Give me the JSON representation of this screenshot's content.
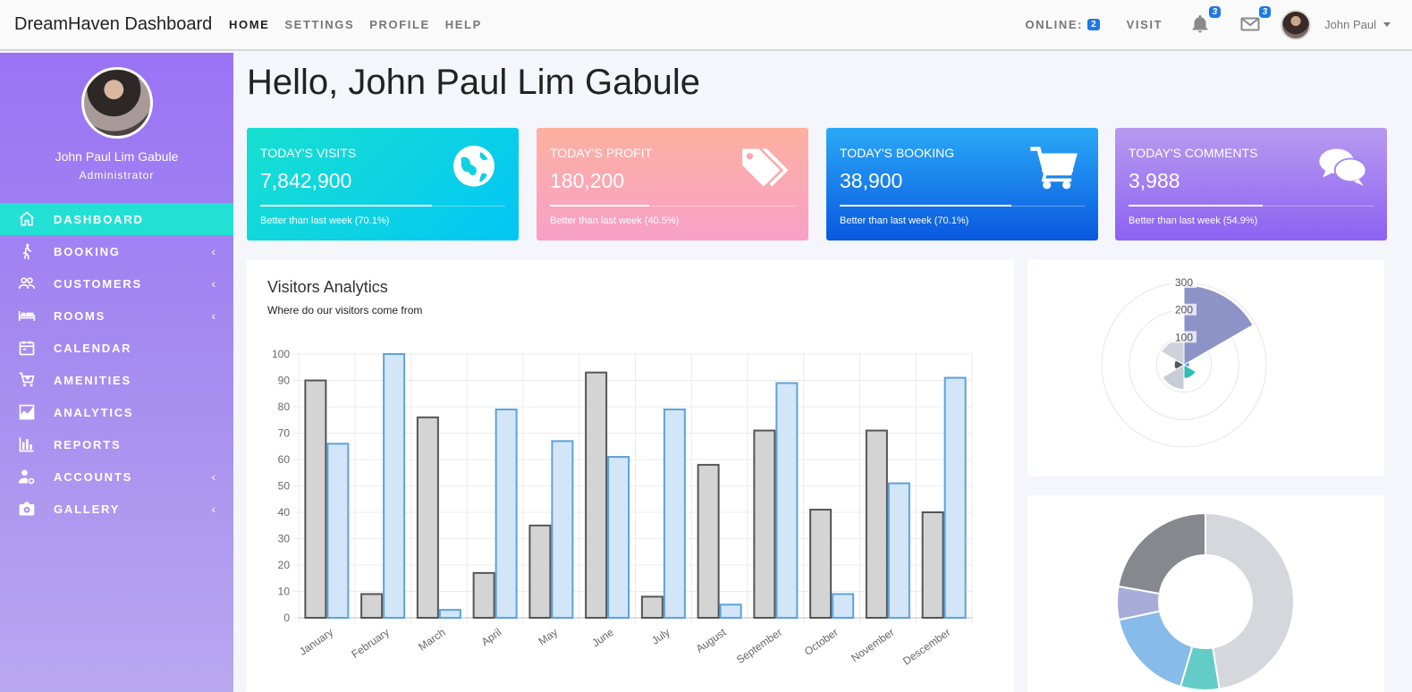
{
  "app": {
    "brand": "DreamHaven Dashboard"
  },
  "topnav": {
    "items": [
      "HOME",
      "SETTINGS",
      "PROFILE",
      "HELP"
    ]
  },
  "topright": {
    "online_label": "ONLINE:",
    "online_count": "2",
    "visit_label": "VISIT",
    "notifications_count": "3",
    "messages_count": "3",
    "user_name": "John Paul"
  },
  "sidebar": {
    "user_name": "John Paul Lim Gabule",
    "role": "Administrator",
    "items": [
      {
        "label": "DASHBOARD",
        "icon": "home-icon",
        "active": true
      },
      {
        "label": "BOOKING",
        "icon": "walk-icon",
        "chevron": "‹"
      },
      {
        "label": "CUSTOMERS",
        "icon": "people-icon",
        "chevron": "‹"
      },
      {
        "label": "ROOMS",
        "icon": "bed-icon",
        "chevron": "‹"
      },
      {
        "label": "CALENDAR",
        "icon": "calendar-icon"
      },
      {
        "label": "AMENITIES",
        "icon": "cart-plus-icon"
      },
      {
        "label": "ANALYTICS",
        "icon": "area-chart-icon"
      },
      {
        "label": "REPORTS",
        "icon": "bar-chart-icon"
      },
      {
        "label": "ACCOUNTS",
        "icon": "user-gear-icon",
        "chevron": "‹"
      },
      {
        "label": "GALLERY",
        "icon": "camera-icon",
        "chevron": "‹"
      }
    ]
  },
  "main": {
    "greeting": "Hello, John Paul Lim Gabule",
    "cards": [
      {
        "title": "TODAY'S VISITS",
        "value": "7,842,900",
        "footer": "Better than last week (70.1%)",
        "progress": 0.701,
        "icon": "globe-icon"
      },
      {
        "title": "TODAY'S PROFIT",
        "value": "180,200",
        "footer": "Better than last week (40.5%)",
        "progress": 0.405,
        "icon": "tags-icon"
      },
      {
        "title": "TODAY'S BOOKING",
        "value": "38,900",
        "footer": "Better than last week (70.1%)",
        "progress": 0.701,
        "icon": "cart-icon"
      },
      {
        "title": "TODAY'S COMMENTS",
        "value": "3,988",
        "footer": "Better than last week (54.9%)",
        "progress": 0.549,
        "icon": "comments-icon"
      }
    ],
    "analytics": {
      "title": "Visitors Analytics",
      "subtitle": "Where do our visitors come from"
    }
  },
  "colors": {
    "series_gray": "#d4d4d4",
    "series_gray_stroke": "#555555",
    "series_blue": "#d2e6f8",
    "series_blue_stroke": "#5da2dc",
    "accent": "#22e0d4",
    "badge": "#1e78e6"
  },
  "chart_data": [
    {
      "type": "bar",
      "categories": [
        "January",
        "February",
        "March",
        "April",
        "May",
        "June",
        "July",
        "August",
        "September",
        "October",
        "November",
        "Descember"
      ],
      "series": [
        {
          "values": [
            90,
            9,
            76,
            17,
            35,
            93,
            8,
            58,
            71,
            41,
            71,
            40
          ]
        },
        {
          "values": [
            66,
            100,
            3,
            79,
            67,
            61,
            79,
            5,
            89,
            9,
            51,
            91
          ]
        }
      ],
      "ylim": [
        0,
        100
      ],
      "yticks": [
        0,
        10,
        20,
        30,
        40,
        50,
        60,
        70,
        80,
        90,
        100
      ],
      "grid": true
    },
    {
      "type": "polarArea",
      "rticks": [
        100,
        200,
        300
      ],
      "rlim": [
        0,
        300
      ],
      "values": [
        290,
        20,
        50,
        90,
        35,
        95
      ],
      "colors": [
        "#8e93c7",
        "#5d9cf0",
        "#31bdb2",
        "#c8ccd4",
        "#55575c",
        "#cfd2da"
      ]
    },
    {
      "type": "doughnut",
      "values": [
        47,
        7,
        17,
        6,
        22
      ],
      "colors": [
        "#d4d7dc",
        "#64ccc6",
        "#86bbea",
        "#a8acd8",
        "#85898d"
      ]
    }
  ]
}
